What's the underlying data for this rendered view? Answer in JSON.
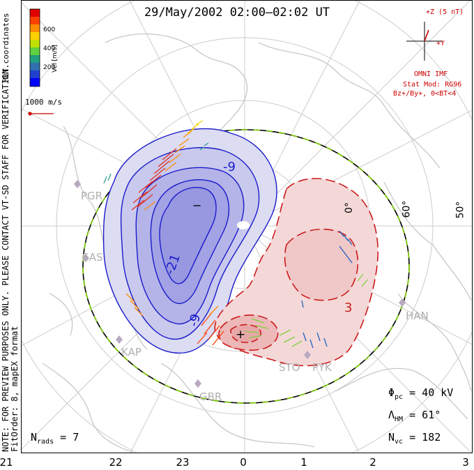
{
  "title": "29/May/2002 02:00–02:02 UT",
  "side_note_1": "NOTE: FOR PREVIEW PURPOSES ONLY. PLEASE CONTACT VT-SD STAFF FOR VERIFICATION.",
  "side_note_2": "FitOrder: 8, mapEX format",
  "coord_label": "MLT coordinates",
  "colorbar": {
    "unit_label": "Vel [m/s]",
    "ticks": [
      "600",
      "400",
      "200"
    ],
    "colors": [
      "#e00000",
      "#ff4000",
      "#ff8c00",
      "#ffd000",
      "#c0e000",
      "#60d040",
      "#20a080",
      "#3070b0",
      "#2040d0",
      "#0000ff"
    ]
  },
  "vector_scale": "1000 m/s",
  "imf": {
    "plus_z": "+Z (5 nT)",
    "plus_y": "+Y",
    "source": "OMNI IMF",
    "model": "Stat Mod: RG96",
    "condition": "Bz+/By+, 0<BT<4"
  },
  "stats": {
    "phi_pc_label": "Φ",
    "phi_pc_sub": "pc",
    "phi_pc_value": "= 40 kV",
    "lambda_hm_label": "Λ",
    "lambda_hm_sub": "HM",
    "lambda_hm_value": "= 61°",
    "n_vc_label": "N",
    "n_vc_sub": "vc",
    "n_vc_value": "= 182",
    "n_rads_label": "N",
    "n_rads_sub": "rads",
    "n_rads_value": "= 7"
  },
  "mlt_ticks": [
    "21",
    "22",
    "23",
    "0",
    "1",
    "2",
    "3"
  ],
  "latitude_labels": [
    "60°",
    "50°",
    "0°"
  ],
  "contour_labels": [
    "-9",
    "-21",
    "-9",
    "3",
    "−",
    "+"
  ],
  "stations": [
    "PGR",
    "SAS",
    "KAP",
    "GBR",
    "STO",
    "PYK",
    "HAN"
  ],
  "colors": {
    "negative_cell": "#1a1acc",
    "positive_cell": "#cc1a1a",
    "hm_boundary_a": "#000000",
    "hm_boundary_b": "#7fd000",
    "coastline": "#c8c8c8"
  }
}
